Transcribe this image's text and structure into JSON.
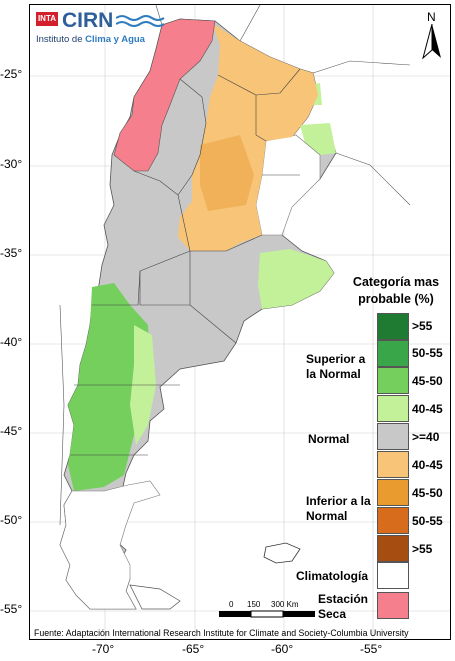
{
  "logo": {
    "brand_badge": "INTA",
    "name": "CIRN",
    "subtitle_prefix": "Instituto de ",
    "subtitle_highlight": "Clima y Agua"
  },
  "north_arrow": {
    "label": "N"
  },
  "latitude_labels": [
    "-25°",
    "-30°",
    "-35°",
    "-40°",
    "-45°",
    "-50°",
    "-55°"
  ],
  "longitude_labels": [
    "-70°",
    "-65°",
    "-60°",
    "-55°"
  ],
  "legend": {
    "title": "Categoría mas probable (%)",
    "groups": {
      "superior": "Superior a la Normal",
      "normal": "Normal",
      "inferior": "Inferior a la Normal"
    },
    "items": [
      {
        "label": ">55",
        "color": "#1f7a32"
      },
      {
        "label": "50-55",
        "color": "#3aa64a"
      },
      {
        "label": "45-50",
        "color": "#74cf5c"
      },
      {
        "label": "40-45",
        "color": "#c3f19a"
      },
      {
        "label": ">=40",
        "color": "#c8c8c8"
      },
      {
        "label": "40-45",
        "color": "#f7c478"
      },
      {
        "label": "45-50",
        "color": "#e99b30"
      },
      {
        "label": "50-55",
        "color": "#d66c1c"
      },
      {
        "label": ">55",
        "color": "#a64d12"
      },
      {
        "label": "Climatología",
        "color": "#ffffff"
      },
      {
        "label": "Estación Seca",
        "color": "#f57f8c"
      }
    ]
  },
  "scale": {
    "labels": [
      "0",
      "150",
      "300 Km"
    ]
  },
  "source": "Fuente: Adaptación International Research Institute for Climate and Society-Columbia University"
}
